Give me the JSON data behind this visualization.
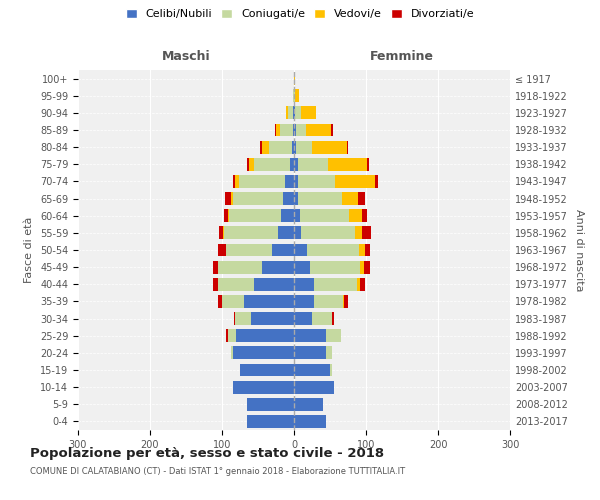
{
  "age_groups": [
    "0-4",
    "5-9",
    "10-14",
    "15-19",
    "20-24",
    "25-29",
    "30-34",
    "35-39",
    "40-44",
    "45-49",
    "50-54",
    "55-59",
    "60-64",
    "65-69",
    "70-74",
    "75-79",
    "80-84",
    "85-89",
    "90-94",
    "95-99",
    "100+"
  ],
  "birth_years": [
    "2013-2017",
    "2008-2012",
    "2003-2007",
    "1998-2002",
    "1993-1997",
    "1988-1992",
    "1983-1987",
    "1978-1982",
    "1973-1977",
    "1968-1972",
    "1963-1967",
    "1958-1962",
    "1953-1957",
    "1948-1952",
    "1943-1947",
    "1938-1942",
    "1933-1937",
    "1928-1932",
    "1923-1927",
    "1918-1922",
    "≤ 1917"
  ],
  "maschi": {
    "celibi": [
      65,
      65,
      85,
      75,
      85,
      80,
      60,
      70,
      55,
      45,
      30,
      22,
      18,
      15,
      12,
      5,
      3,
      2,
      1,
      0,
      0
    ],
    "coniugati": [
      0,
      0,
      0,
      0,
      3,
      12,
      22,
      30,
      50,
      60,
      65,
      75,
      72,
      70,
      65,
      50,
      32,
      18,
      8,
      1,
      0
    ],
    "vedovi": [
      0,
      0,
      0,
      0,
      0,
      0,
      0,
      0,
      0,
      0,
      0,
      2,
      2,
      3,
      5,
      8,
      10,
      5,
      2,
      0,
      0
    ],
    "divorziati": [
      0,
      0,
      0,
      0,
      0,
      2,
      2,
      5,
      8,
      8,
      10,
      5,
      5,
      8,
      3,
      2,
      2,
      2,
      0,
      0,
      0
    ]
  },
  "femmine": {
    "nubili": [
      45,
      40,
      55,
      50,
      45,
      45,
      25,
      28,
      28,
      22,
      18,
      10,
      8,
      5,
      5,
      5,
      3,
      3,
      2,
      0,
      0
    ],
    "coniugate": [
      0,
      0,
      0,
      3,
      8,
      20,
      28,
      40,
      60,
      70,
      72,
      75,
      68,
      62,
      52,
      42,
      22,
      14,
      8,
      2,
      0
    ],
    "vedove": [
      0,
      0,
      0,
      0,
      0,
      0,
      0,
      2,
      3,
      5,
      8,
      10,
      18,
      22,
      55,
      55,
      48,
      35,
      20,
      5,
      2
    ],
    "divorziate": [
      0,
      0,
      0,
      0,
      0,
      0,
      3,
      5,
      8,
      8,
      8,
      12,
      8,
      10,
      5,
      2,
      2,
      2,
      0,
      0,
      0
    ]
  },
  "colors": {
    "celibi": "#4472c4",
    "coniugati": "#c5d9a0",
    "vedovi": "#ffc000",
    "divorziati": "#cc0000"
  },
  "xlim": 300,
  "title": "Popolazione per età, sesso e stato civile - 2018",
  "subtitle": "COMUNE DI CALATABIANO (CT) - Dati ISTAT 1° gennaio 2018 - Elaborazione TUTTITALIA.IT",
  "ylabel_left": "Fasce di età",
  "ylabel_right": "Anni di nascita",
  "xlabel_left": "Maschi",
  "xlabel_right": "Femmine",
  "bg_color": "#f0f0f0",
  "grid_color": "#ffffff"
}
